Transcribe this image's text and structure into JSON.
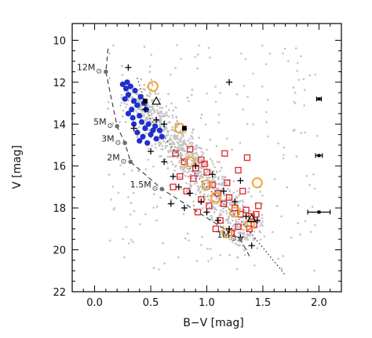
{
  "chart_data": {
    "type": "scatter",
    "title": "",
    "xlabel": "B−V [mag]",
    "ylabel": "V [mag]",
    "xlim": [
      -0.2,
      2.2
    ],
    "ylim": [
      22,
      9.2
    ],
    "y_inverted": true,
    "x_ticks": [
      "0.0",
      "0.5",
      "1.0",
      "1.5",
      "2.0"
    ],
    "x_tick_values": [
      0.0,
      0.5,
      1.0,
      1.5,
      2.0
    ],
    "y_ticks": [
      "10",
      "12",
      "14",
      "16",
      "18",
      "20",
      "22"
    ],
    "y_tick_values": [
      10,
      12,
      14,
      16,
      18,
      20,
      22
    ],
    "grid": false,
    "colors": {
      "background_field": "#c4c4c4",
      "blue_stars": "#1f2fd0",
      "red_squares": "#e0262a",
      "orange_circles": "#f2a33a",
      "track_points": "#6e6e6e",
      "plus_markers": "#000000"
    },
    "evolutionary_track": {
      "line_style": "dashed",
      "points": [
        {
          "label": "12M",
          "x": 0.1,
          "y": 11.5
        },
        {
          "label": "5M",
          "x": 0.2,
          "y": 14.1
        },
        {
          "label": "3M",
          "x": 0.27,
          "y": 14.9
        },
        {
          "label": "2M",
          "x": 0.32,
          "y": 15.8
        },
        {
          "label": "1.5M",
          "x": 0.6,
          "y": 17.1
        },
        {
          "label": "1M",
          "x": 1.3,
          "y": 19.5
        }
      ]
    },
    "zams_line": {
      "line_style": "dotted",
      "x": [
        0.38,
        0.5,
        0.75,
        1.0,
        1.3,
        1.7
      ],
      "y": [
        11.8,
        13.8,
        15.5,
        17.0,
        18.6,
        21.2
      ]
    },
    "error_bars": [
      {
        "x": 2.0,
        "y": 12.8,
        "xerr": 0.02
      },
      {
        "x": 2.0,
        "y": 15.5,
        "xerr": 0.03
      },
      {
        "x": 2.0,
        "y": 18.2,
        "xerr": 0.1
      }
    ],
    "blue_stars": [
      [
        0.25,
        12.1
      ],
      [
        0.28,
        12.3
      ],
      [
        0.3,
        12.6
      ],
      [
        0.32,
        12.2
      ],
      [
        0.35,
        12.9
      ],
      [
        0.27,
        12.8
      ],
      [
        0.33,
        13.3
      ],
      [
        0.38,
        13.1
      ],
      [
        0.3,
        13.5
      ],
      [
        0.4,
        13.6
      ],
      [
        0.42,
        13.9
      ],
      [
        0.35,
        14.0
      ],
      [
        0.45,
        14.2
      ],
      [
        0.38,
        14.4
      ],
      [
        0.5,
        14.5
      ],
      [
        0.43,
        14.6
      ],
      [
        0.48,
        14.0
      ],
      [
        0.52,
        14.3
      ],
      [
        0.55,
        14.7
      ],
      [
        0.58,
        14.3
      ],
      [
        0.36,
        12.4
      ],
      [
        0.41,
        12.7
      ],
      [
        0.46,
        13.3
      ],
      [
        0.44,
        13.0
      ],
      [
        0.29,
        12.0
      ],
      [
        0.4,
        14.8
      ],
      [
        0.6,
        14.6
      ],
      [
        0.54,
        14.1
      ],
      [
        0.47,
        14.9
      ],
      [
        0.34,
        13.7
      ]
    ],
    "red_squares": [
      [
        0.72,
        15.4
      ],
      [
        0.8,
        15.8
      ],
      [
        0.85,
        15.2
      ],
      [
        0.9,
        16.1
      ],
      [
        0.95,
        15.7
      ],
      [
        1.0,
        16.3
      ],
      [
        1.05,
        16.9
      ],
      [
        0.88,
        16.6
      ],
      [
        0.82,
        17.2
      ],
      [
        1.1,
        17.3
      ],
      [
        1.15,
        17.8
      ],
      [
        1.2,
        17.5
      ],
      [
        1.25,
        18.0
      ],
      [
        1.3,
        18.3
      ],
      [
        1.35,
        18.1
      ],
      [
        1.4,
        18.4
      ],
      [
        1.42,
        18.8
      ],
      [
        1.38,
        19.0
      ],
      [
        1.28,
        18.9
      ],
      [
        1.22,
        19.2
      ],
      [
        0.95,
        17.6
      ],
      [
        1.02,
        17.9
      ],
      [
        1.12,
        18.6
      ],
      [
        1.18,
        16.8
      ],
      [
        1.28,
        16.2
      ],
      [
        1.36,
        15.6
      ],
      [
        0.76,
        16.5
      ],
      [
        0.7,
        17.0
      ],
      [
        0.98,
        15.9
      ],
      [
        1.32,
        17.2
      ],
      [
        1.44,
        18.3
      ],
      [
        1.46,
        17.9
      ],
      [
        1.08,
        19.0
      ],
      [
        0.92,
        18.2
      ],
      [
        1.16,
        15.4
      ]
    ],
    "orange_circles": [
      [
        0.52,
        12.2
      ],
      [
        0.76,
        14.2
      ],
      [
        0.85,
        15.8
      ],
      [
        1.0,
        16.9
      ],
      [
        1.08,
        17.5
      ],
      [
        1.25,
        18.2
      ],
      [
        1.38,
        18.8
      ],
      [
        1.45,
        16.8
      ],
      [
        1.18,
        19.2
      ]
    ],
    "plus_markers": [
      [
        0.3,
        11.3
      ],
      [
        0.45,
        13.3
      ],
      [
        0.55,
        13.8
      ],
      [
        0.35,
        14.2
      ],
      [
        0.5,
        15.3
      ],
      [
        0.62,
        15.8
      ],
      [
        0.7,
        16.5
      ],
      [
        0.75,
        17.0
      ],
      [
        0.85,
        17.3
      ],
      [
        0.95,
        17.7
      ],
      [
        1.0,
        18.2
      ],
      [
        1.1,
        18.6
      ],
      [
        1.2,
        19.0
      ],
      [
        1.3,
        19.4
      ],
      [
        1.05,
        16.4
      ],
      [
        1.15,
        17.2
      ],
      [
        1.25,
        17.7
      ],
      [
        1.35,
        18.4
      ],
      [
        1.45,
        18.6
      ],
      [
        1.2,
        12.0
      ],
      [
        0.9,
        16.0
      ],
      [
        0.8,
        18.0
      ],
      [
        1.4,
        19.8
      ],
      [
        0.62,
        14.0
      ],
      [
        0.68,
        17.8
      ],
      [
        1.3,
        16.7
      ]
    ],
    "triangles": [
      [
        0.55,
        12.9
      ],
      [
        1.4,
        18.5
      ]
    ],
    "filled_squares": [
      [
        0.45,
        12.9
      ],
      [
        0.8,
        14.2
      ]
    ]
  }
}
